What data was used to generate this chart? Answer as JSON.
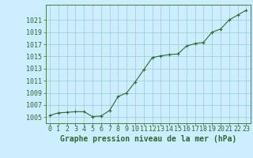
{
  "x": [
    0,
    1,
    2,
    3,
    4,
    5,
    6,
    7,
    8,
    9,
    10,
    11,
    12,
    13,
    14,
    15,
    16,
    17,
    18,
    19,
    20,
    21,
    22,
    23
  ],
  "y": [
    1005.3,
    1005.7,
    1005.8,
    1005.9,
    1005.9,
    1005.1,
    1005.2,
    1006.1,
    1008.4,
    1009.0,
    1010.8,
    1012.8,
    1014.8,
    1015.1,
    1015.3,
    1015.4,
    1016.7,
    1017.1,
    1017.3,
    1019.0,
    1019.5,
    1021.0,
    1021.8,
    1022.6
  ],
  "xlabel": "Graphe pression niveau de la mer (hPa)",
  "line_color": "#336633",
  "marker": "+",
  "bg_color": "#cceeff",
  "grid_color": "#99cccc",
  "tick_color": "#336633",
  "label_color": "#336633",
  "ylim": [
    1004.0,
    1023.5
  ],
  "yticks": [
    1005,
    1007,
    1009,
    1011,
    1013,
    1015,
    1017,
    1019,
    1021
  ],
  "xticks": [
    0,
    1,
    2,
    3,
    4,
    5,
    6,
    7,
    8,
    9,
    10,
    11,
    12,
    13,
    14,
    15,
    16,
    17,
    18,
    19,
    20,
    21,
    22,
    23
  ],
  "xlabel_fontsize": 7.0,
  "tick_fontsize": 6.0,
  "marker_size": 3.5,
  "linewidth": 0.8
}
